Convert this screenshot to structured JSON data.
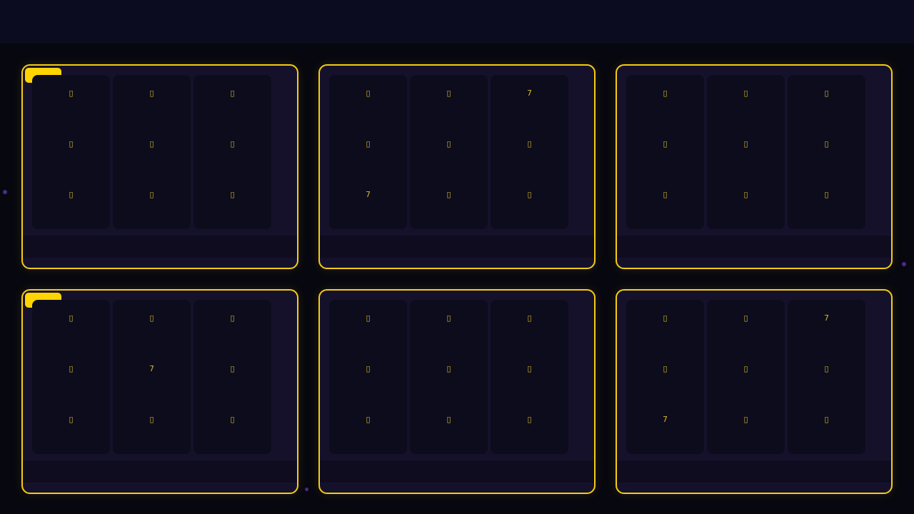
{
  "colors": {
    "accent": "#f5cc16",
    "badge": "#ffd400",
    "card": "#16112b",
    "reel": "#0c0c1c",
    "header": "#0b0c1f"
  },
  "machines": [
    {
      "active": true,
      "reels": [
        [
          "▯",
          "▯",
          "▯"
        ],
        [
          "▯",
          "▯",
          "▯"
        ],
        [
          "▯",
          "▯",
          "▯"
        ]
      ]
    },
    {
      "active": false,
      "reels": [
        [
          "▯",
          "▯",
          "7"
        ],
        [
          "▯",
          "▯",
          "▯"
        ],
        [
          "7",
          "▯",
          "▯"
        ]
      ]
    },
    {
      "active": false,
      "reels": [
        [
          "▯",
          "▯",
          "▯"
        ],
        [
          "▯",
          "▯",
          "▯"
        ],
        [
          "▯",
          "▯",
          "▯"
        ]
      ]
    },
    {
      "active": true,
      "reels": [
        [
          "▯",
          "▯",
          "▯"
        ],
        [
          "▯",
          "7",
          "▯"
        ],
        [
          "▯",
          "▯",
          "▯"
        ]
      ]
    },
    {
      "active": false,
      "reels": [
        [
          "▯",
          "▯",
          "▯"
        ],
        [
          "▯",
          "▯",
          "▯"
        ],
        [
          "▯",
          "▯",
          "▯"
        ]
      ]
    },
    {
      "active": false,
      "reels": [
        [
          "▯",
          "▯",
          "7"
        ],
        [
          "▯",
          "▯",
          "▯"
        ],
        [
          "7",
          "▯",
          "▯"
        ]
      ]
    }
  ]
}
